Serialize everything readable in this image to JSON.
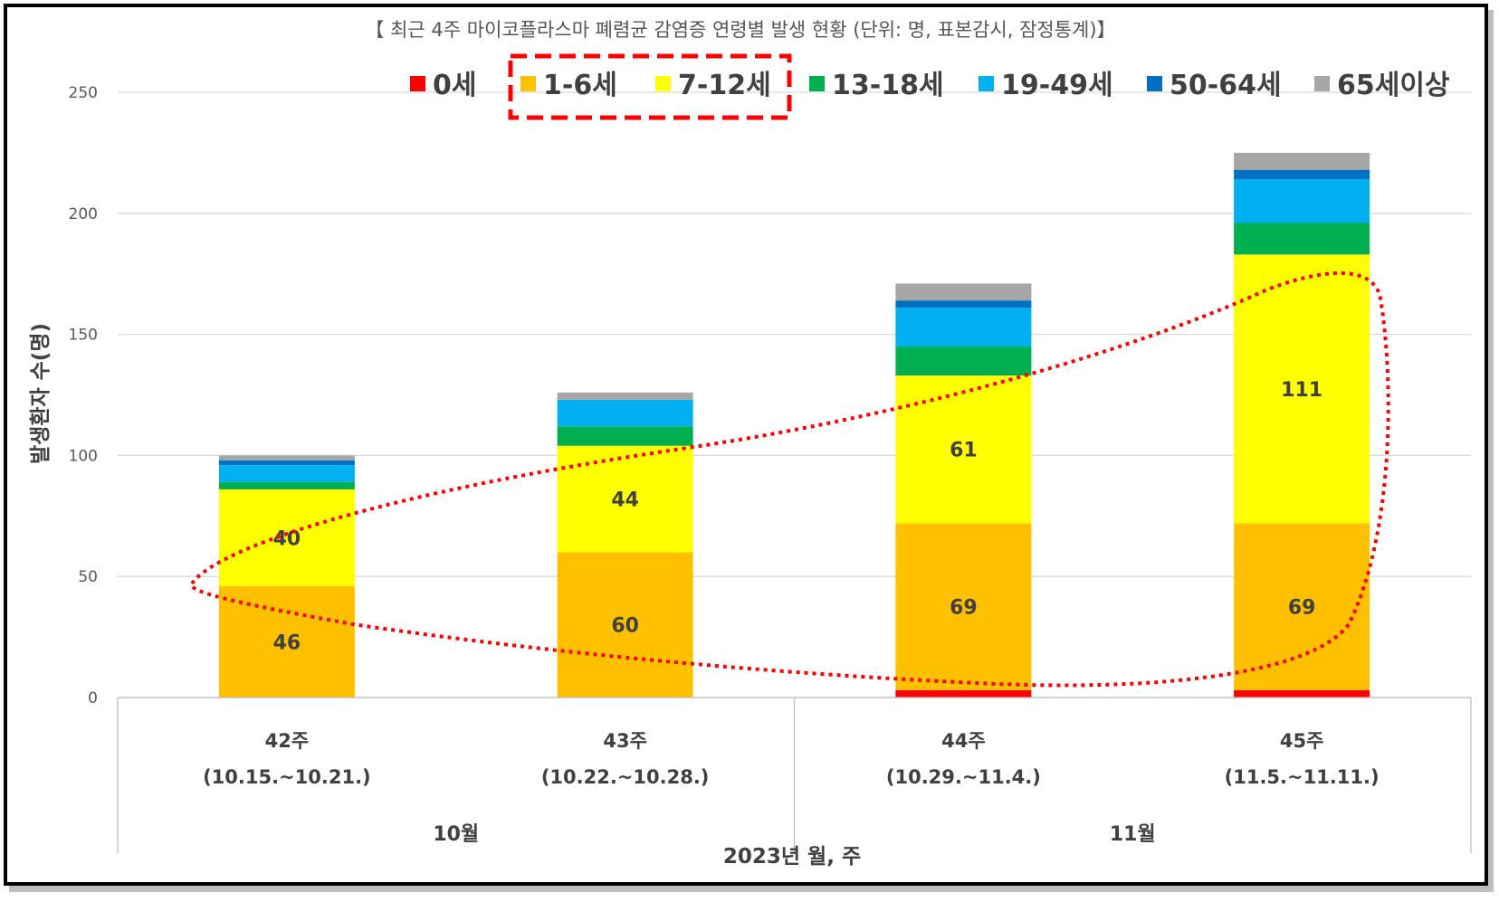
{
  "chart_data": {
    "type": "bar",
    "stacked": true,
    "title": "【 최근 4주 마이코플라스마 폐렴균 감염증 연령별 발생 현황 (단위: 명, 표본감시, 잠정통계)】",
    "xlabel": "2023년 월, 주",
    "ylabel": "발생환자 수(명)",
    "ylim": [
      0,
      250
    ],
    "yticks": [
      0,
      50,
      100,
      150,
      200,
      250
    ],
    "grid": true,
    "legend_position": "top",
    "categories": [
      {
        "week": "42주",
        "range": "(10.15.~10.21.)"
      },
      {
        "week": "43주",
        "range": "(10.22.~10.28.)"
      },
      {
        "week": "44주",
        "range": "(10.29.~11.4.)"
      },
      {
        "week": "45주",
        "range": "(11.5.~11.11.)"
      }
    ],
    "months": [
      {
        "label": "10월",
        "span": [
          0,
          1
        ]
      },
      {
        "label": "11월",
        "span": [
          2,
          3
        ]
      }
    ],
    "series": [
      {
        "name": "0세",
        "color": "#ff0000",
        "values": [
          0,
          0,
          3,
          3
        ],
        "labels": [
          false,
          false,
          false,
          false
        ]
      },
      {
        "name": "1-6세",
        "color": "#ffc000",
        "values": [
          46,
          60,
          69,
          69
        ],
        "labels": [
          true,
          true,
          true,
          true
        ]
      },
      {
        "name": "7-12세",
        "color": "#ffff00",
        "values": [
          40,
          44,
          61,
          111
        ],
        "labels": [
          true,
          true,
          true,
          true
        ]
      },
      {
        "name": "13-18세",
        "color": "#00b050",
        "values": [
          3,
          8,
          12,
          13
        ],
        "labels": [
          false,
          false,
          false,
          false
        ]
      },
      {
        "name": "19-49세",
        "color": "#00b0f0",
        "values": [
          7,
          11,
          16,
          18
        ],
        "labels": [
          false,
          false,
          false,
          false
        ]
      },
      {
        "name": "50-64세",
        "color": "#0070c0",
        "values": [
          2,
          0,
          3,
          4
        ],
        "labels": [
          false,
          false,
          false,
          false
        ]
      },
      {
        "name": "65세이상",
        "color": "#a6a6a6",
        "values": [
          2,
          3,
          7,
          7
        ],
        "labels": [
          false,
          false,
          false,
          false
        ]
      }
    ],
    "highlight": {
      "legend_box_color": "#ff0000",
      "series_highlighted": [
        "1-6세",
        "7-12세"
      ]
    }
  }
}
